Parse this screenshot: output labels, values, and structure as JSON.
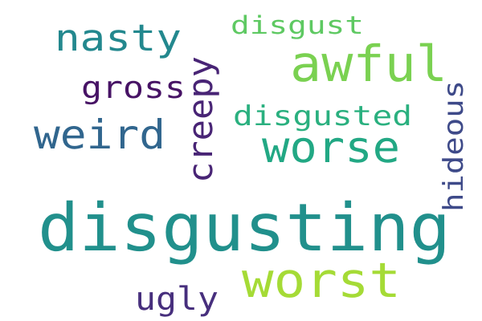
{
  "words": [
    {
      "text": "disgusting",
      "color": "#21908c",
      "orientation": "horizontal"
    },
    {
      "text": "worst",
      "color": "#a5db36",
      "orientation": "horizontal"
    },
    {
      "text": "awful",
      "color": "#7ad151",
      "orientation": "horizontal"
    },
    {
      "text": "worse",
      "color": "#22a884",
      "orientation": "horizontal"
    },
    {
      "text": "weird",
      "color": "#31668e",
      "orientation": "horizontal"
    },
    {
      "text": "nasty",
      "color": "#23888e",
      "orientation": "horizontal"
    },
    {
      "text": "creepy",
      "color": "#482475",
      "orientation": "vertical"
    },
    {
      "text": "ugly",
      "color": "#472f7d",
      "orientation": "horizontal"
    },
    {
      "text": "hideous",
      "color": "#3e4a89",
      "orientation": "vertical"
    },
    {
      "text": "gross",
      "color": "#471365",
      "orientation": "horizontal"
    },
    {
      "text": "disgusted",
      "color": "#2ab07f",
      "orientation": "horizontal"
    },
    {
      "text": "disgust",
      "color": "#5ec962",
      "orientation": "horizontal"
    }
  ]
}
